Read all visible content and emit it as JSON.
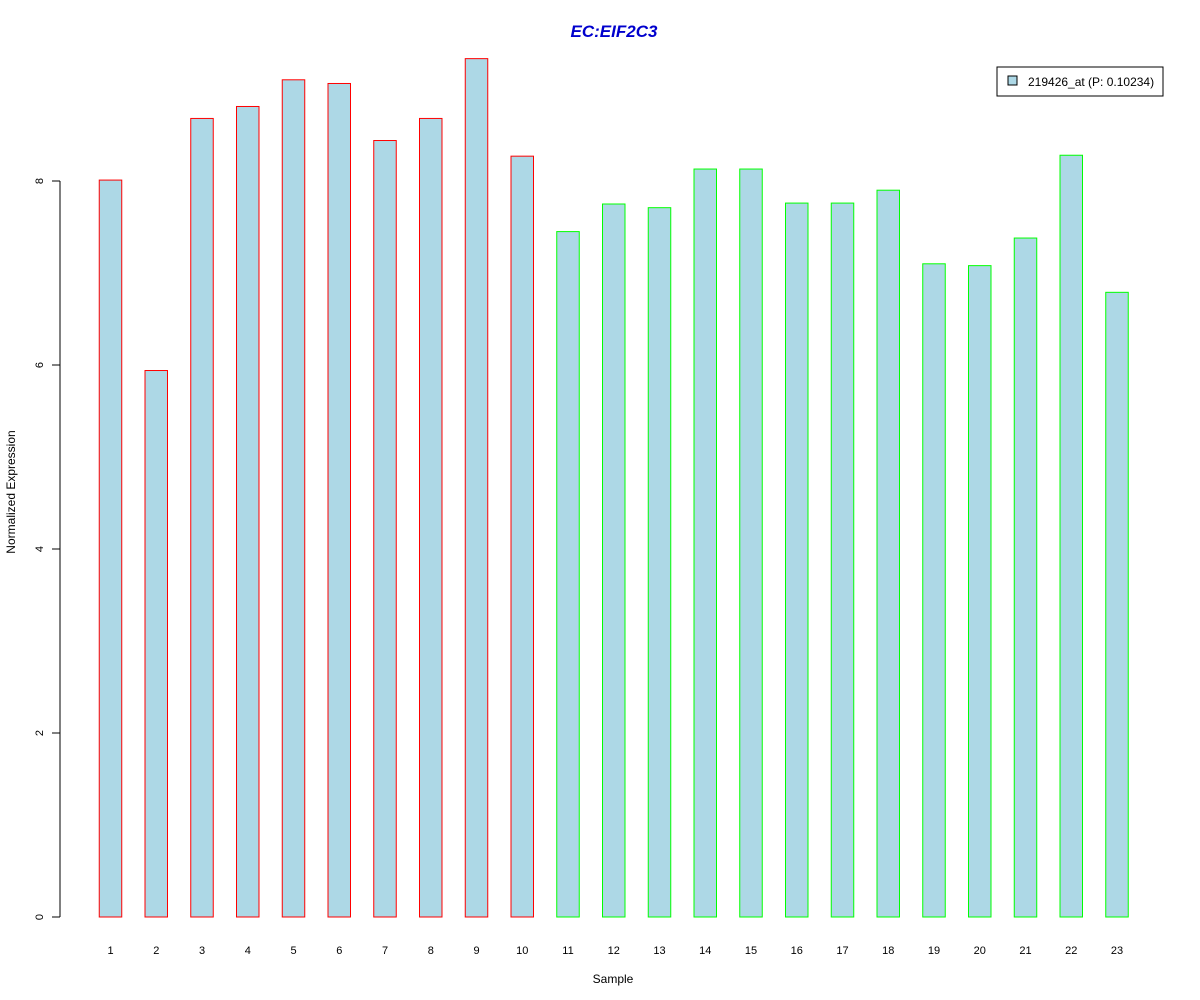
{
  "chart_data": {
    "type": "bar",
    "title": "EC:EIF2C3",
    "xlabel": "Sample",
    "ylabel": "Normalized Expression",
    "categories": [
      "1",
      "2",
      "3",
      "4",
      "5",
      "6",
      "7",
      "8",
      "9",
      "10",
      "11",
      "12",
      "13",
      "14",
      "15",
      "16",
      "17",
      "18",
      "19",
      "20",
      "21",
      "22",
      "23"
    ],
    "series": [
      {
        "name": "219426_at (P: 0.10234)",
        "values": [
          8.01,
          5.94,
          8.68,
          8.81,
          9.1,
          9.06,
          8.44,
          8.68,
          9.33,
          8.27,
          7.45,
          7.75,
          7.71,
          8.13,
          8.13,
          7.76,
          7.76,
          7.9,
          7.1,
          7.08,
          7.38,
          8.28,
          6.79
        ]
      }
    ],
    "group_border_colors": [
      "#ff0000",
      "#ff0000",
      "#ff0000",
      "#ff0000",
      "#ff0000",
      "#ff0000",
      "#ff0000",
      "#ff0000",
      "#ff0000",
      "#ff0000",
      "#00ff00",
      "#00ff00",
      "#00ff00",
      "#00ff00",
      "#00ff00",
      "#00ff00",
      "#00ff00",
      "#00ff00",
      "#00ff00",
      "#00ff00",
      "#00ff00",
      "#00ff00",
      "#00ff00"
    ],
    "ylim": [
      0,
      9.4
    ],
    "yticks": [
      0,
      2,
      4,
      6,
      8
    ],
    "ytick_labels": [
      "0",
      "2",
      "4",
      "6",
      "8"
    ],
    "grid": false,
    "legend_position": "top-right",
    "colors": {
      "bar_fill": "#add8e6",
      "title": "#0000cd",
      "axis": "#000000"
    }
  }
}
